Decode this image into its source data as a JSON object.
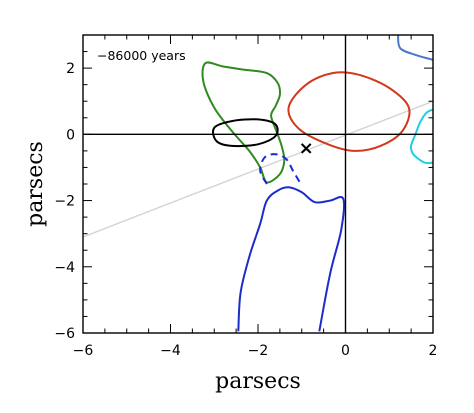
{
  "chart_data": {
    "type": "line",
    "title": "",
    "annotation": "−86000 years",
    "xlabel": "parsecs",
    "ylabel": "parsecs",
    "xlim": [
      -6,
      2
    ],
    "ylim": [
      -6,
      3
    ],
    "xticks": [
      -6,
      -4,
      -2,
      0,
      2
    ],
    "yticks": [
      -6,
      -4,
      -2,
      0,
      2
    ],
    "xtick_labels": [
      "−6",
      "−4",
      "−2",
      "0",
      "2"
    ],
    "ytick_labels": [
      "−6",
      "−4",
      "−2",
      "0",
      "2"
    ],
    "grid": false,
    "reference_lines": {
      "x": 0,
      "y": 0
    },
    "marker": {
      "symbol": "×",
      "x": -0.9,
      "y": -0.45
    },
    "diagonal_line": {
      "color": "#d3d3d3",
      "points": [
        [
          -6,
          -3.1
        ],
        [
          2,
          1.0
        ]
      ]
    },
    "series": [
      {
        "color": "#2e8b1e",
        "style": "solid",
        "closed": true,
        "points": [
          [
            -3.2,
            2.15
          ],
          [
            -2.8,
            2.05
          ],
          [
            -2.3,
            1.95
          ],
          [
            -1.8,
            1.85
          ],
          [
            -1.55,
            1.55
          ],
          [
            -1.5,
            1.2
          ],
          [
            -1.6,
            0.85
          ],
          [
            -1.7,
            0.55
          ],
          [
            -1.55,
            0.0
          ],
          [
            -1.45,
            -0.4
          ],
          [
            -1.4,
            -0.8
          ],
          [
            -1.5,
            -1.2
          ],
          [
            -1.8,
            -1.45
          ],
          [
            -1.95,
            -1.0
          ],
          [
            -2.2,
            -0.5
          ],
          [
            -2.6,
            0.1
          ],
          [
            -3.0,
            0.8
          ],
          [
            -3.25,
            1.6
          ]
        ]
      },
      {
        "color": "#000000",
        "style": "solid",
        "closed": true,
        "points": [
          [
            -3.0,
            0.2
          ],
          [
            -2.6,
            0.4
          ],
          [
            -2.0,
            0.45
          ],
          [
            -1.6,
            0.3
          ],
          [
            -1.6,
            -0.05
          ],
          [
            -2.0,
            -0.3
          ],
          [
            -2.6,
            -0.35
          ],
          [
            -2.95,
            -0.2
          ]
        ]
      },
      {
        "color": "#d3381c",
        "style": "solid",
        "closed": true,
        "points": [
          [
            -1.3,
            0.8
          ],
          [
            -0.9,
            1.5
          ],
          [
            -0.3,
            1.85
          ],
          [
            0.3,
            1.8
          ],
          [
            1.0,
            1.4
          ],
          [
            1.45,
            0.8
          ],
          [
            1.3,
            0.1
          ],
          [
            0.8,
            -0.35
          ],
          [
            0.2,
            -0.5
          ],
          [
            -0.4,
            -0.3
          ],
          [
            -1.05,
            0.15
          ]
        ]
      },
      {
        "color": "#1c2ccc",
        "style": "dashed",
        "closed": false,
        "points": [
          [
            -1.8,
            -1.5
          ],
          [
            -1.95,
            -1.1
          ],
          [
            -1.85,
            -0.7
          ],
          [
            -1.6,
            -0.6
          ],
          [
            -1.35,
            -0.75
          ],
          [
            -1.2,
            -1.1
          ],
          [
            -1.0,
            -1.55
          ]
        ]
      },
      {
        "color": "#1c2ccc",
        "style": "solid",
        "closed": false,
        "points": [
          [
            -2.45,
            -5.95
          ],
          [
            -2.4,
            -4.8
          ],
          [
            -2.2,
            -3.7
          ],
          [
            -1.95,
            -2.7
          ],
          [
            -1.8,
            -2.0
          ],
          [
            -1.55,
            -1.7
          ],
          [
            -1.3,
            -1.6
          ],
          [
            -1.0,
            -1.75
          ],
          [
            -0.7,
            -2.05
          ],
          [
            -0.35,
            -2.0
          ],
          [
            -0.05,
            -1.95
          ],
          [
            -0.1,
            -2.9
          ],
          [
            -0.35,
            -4.2
          ],
          [
            -0.6,
            -5.95
          ]
        ]
      },
      {
        "color": "#22cde0",
        "style": "solid",
        "closed": false,
        "points": [
          [
            2.0,
            0.75
          ],
          [
            1.85,
            0.65
          ],
          [
            1.7,
            0.35
          ],
          [
            1.6,
            0.0
          ],
          [
            1.5,
            -0.35
          ],
          [
            1.55,
            -0.6
          ],
          [
            1.8,
            -0.85
          ],
          [
            2.0,
            -0.85
          ]
        ]
      },
      {
        "color": "#4a78c8",
        "style": "solid",
        "closed": false,
        "points": [
          [
            1.2,
            3.0
          ],
          [
            1.25,
            2.6
          ],
          [
            1.6,
            2.4
          ],
          [
            2.0,
            2.25
          ]
        ]
      }
    ]
  }
}
